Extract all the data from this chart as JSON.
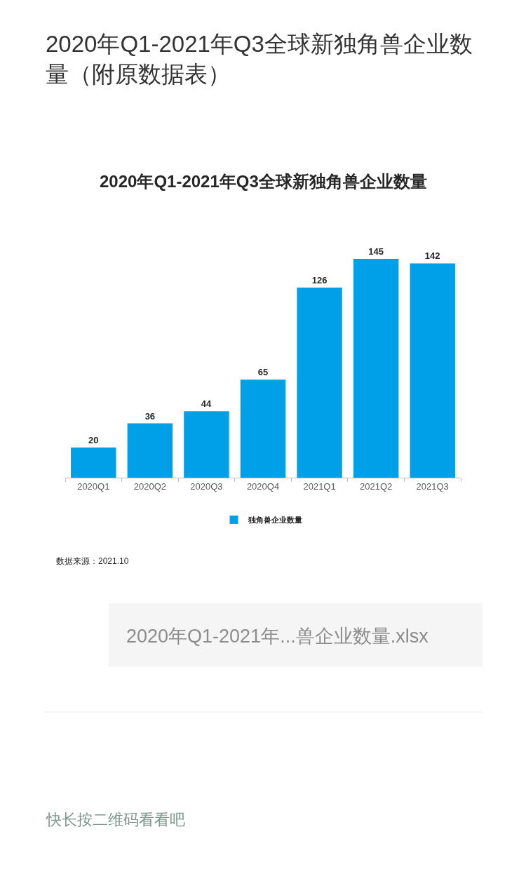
{
  "chart_data": {
    "type": "bar",
    "title": "2020年Q1-2021年Q3全球新独角兽企业数量（附原数据表）",
    "subtitle": "2020年Q1-2021年Q3全球新独角兽企业数量",
    "categories": [
      "2020Q1",
      "2020Q2",
      "2020Q3",
      "2020Q4",
      "2021Q1",
      "2021Q2",
      "2021Q3"
    ],
    "series": [
      {
        "name": "独角兽企业数量",
        "color": "#00a0e9",
        "values": [
          20,
          36,
          44,
          65,
          126,
          145,
          142
        ]
      }
    ],
    "data_labels": true,
    "legend": "bottom",
    "tick_labels": "x",
    "annotations": [
      "数据来源：2021.10",
      "2020年Q1-2021年...兽企业数量.xlsx",
      "快长按二维码看看吧"
    ]
  }
}
